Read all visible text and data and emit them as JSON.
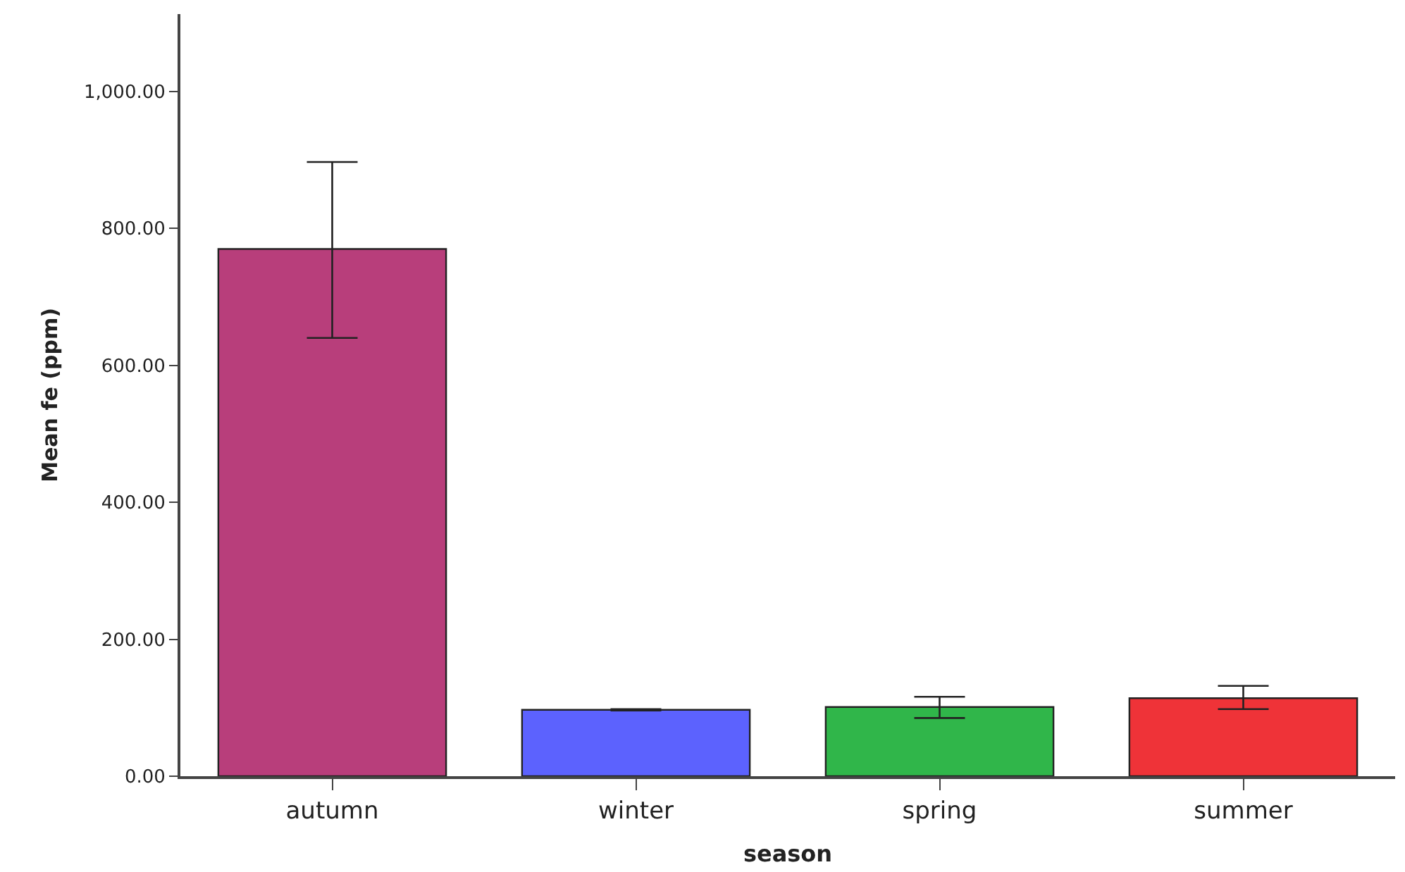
{
  "chart_data": {
    "type": "bar",
    "xlabel": "season",
    "ylabel": "Mean fe (ppm)",
    "categories": [
      "autumn",
      "winter",
      "spring",
      "summer"
    ],
    "values": [
      770,
      97,
      101,
      114
    ],
    "colors": [
      "#b83e7b",
      "#5c62fe",
      "#30b64a",
      "#ef3338"
    ],
    "errors": [
      [
        640,
        897
      ],
      [
        96,
        98
      ],
      [
        85,
        116
      ],
      [
        98,
        132
      ]
    ],
    "ylim": [
      0,
      1113
    ],
    "yticks": [
      {
        "value": 0,
        "label": "0.00"
      },
      {
        "value": 200,
        "label": "200.00"
      },
      {
        "value": 400,
        "label": "400.00"
      },
      {
        "value": 600,
        "label": "600.00"
      },
      {
        "value": 800,
        "label": "800.00"
      },
      {
        "value": 1000,
        "label": "1,000.00"
      }
    ],
    "data_labels": false
  }
}
